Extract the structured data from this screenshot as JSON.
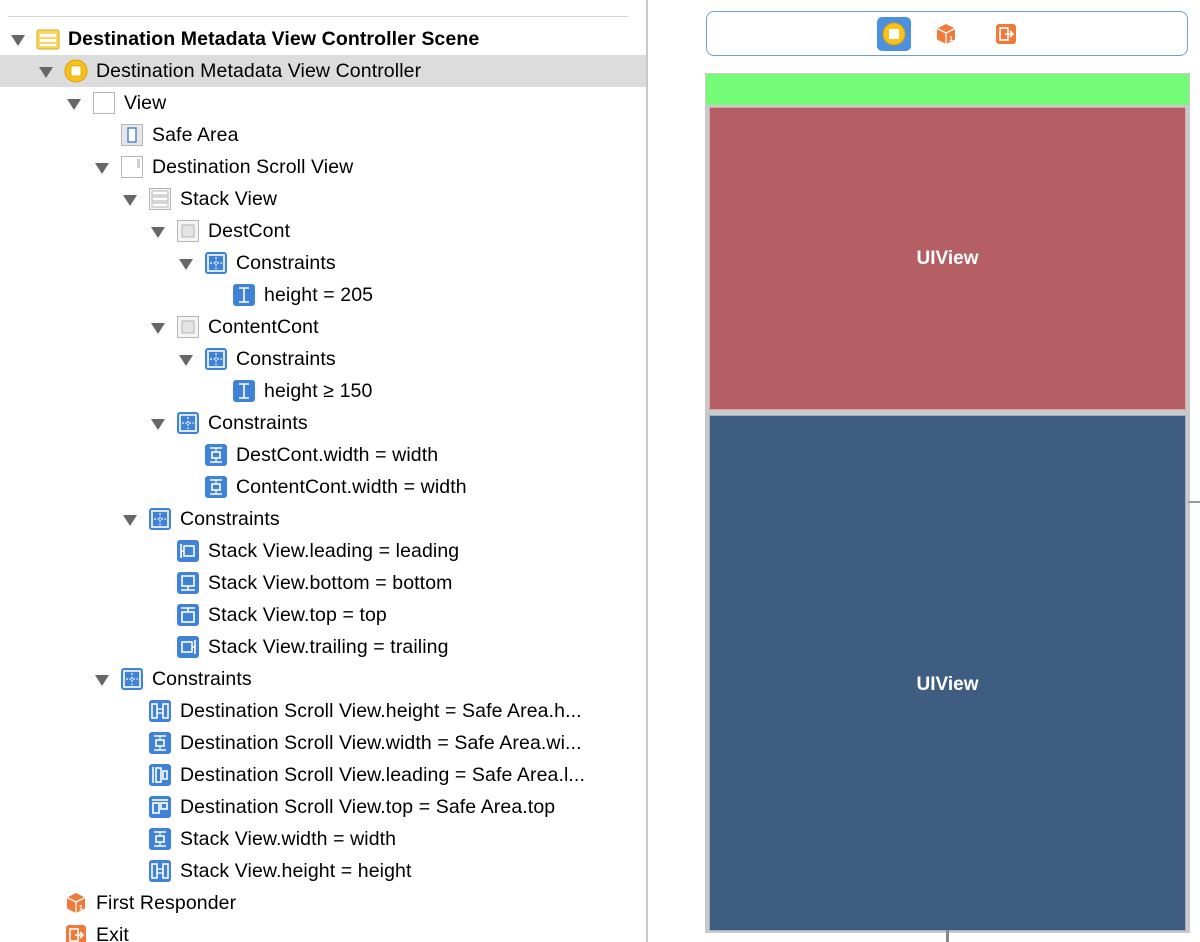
{
  "outline": {
    "rows": [
      {
        "label": "Destination Metadata View Controller Scene",
        "icon": "scene-icon",
        "expanded": true,
        "bold": true
      },
      {
        "label": "Destination Metadata View Controller",
        "icon": "view-controller-icon",
        "expanded": true,
        "selected": true
      },
      {
        "label": "View",
        "icon": "view-icon",
        "expanded": true
      },
      {
        "label": "Safe Area",
        "icon": "safe-area-icon"
      },
      {
        "label": "Destination Scroll View",
        "icon": "scroll-view-icon",
        "expanded": true
      },
      {
        "label": "Stack View",
        "icon": "stack-view-icon",
        "expanded": true
      },
      {
        "label": "DestCont",
        "icon": "container-view-icon",
        "expanded": true
      },
      {
        "label": "Constraints",
        "icon": "constraints-icon",
        "expanded": true
      },
      {
        "label": "height = 205",
        "icon": "height-constraint-icon"
      },
      {
        "label": "ContentCont",
        "icon": "container-view-icon",
        "expanded": true
      },
      {
        "label": "Constraints",
        "icon": "constraints-icon",
        "expanded": true
      },
      {
        "label": "height ≥ 150",
        "icon": "height-constraint-icon"
      },
      {
        "label": "Constraints",
        "icon": "constraints-icon",
        "expanded": true
      },
      {
        "label": "DestCont.width = width",
        "icon": "width-constraint-icon"
      },
      {
        "label": "ContentCont.width = width",
        "icon": "width-constraint-icon"
      },
      {
        "label": "Constraints",
        "icon": "constraints-icon",
        "expanded": true
      },
      {
        "label": "Stack View.leading = leading",
        "icon": "leading-constraint-icon"
      },
      {
        "label": "Stack View.bottom = bottom",
        "icon": "bottom-constraint-icon"
      },
      {
        "label": "Stack View.top = top",
        "icon": "top-constraint-icon"
      },
      {
        "label": "Stack View.trailing = trailing",
        "icon": "trailing-constraint-icon"
      },
      {
        "label": "Constraints",
        "icon": "constraints-icon",
        "expanded": true
      },
      {
        "label": "Destination Scroll View.height = Safe Area.h...",
        "icon": "equal-height-constraint-icon"
      },
      {
        "label": "Destination Scroll View.width = Safe Area.wi...",
        "icon": "width-constraint-icon"
      },
      {
        "label": "Destination Scroll View.leading = Safe Area.l...",
        "icon": "leading-edge-constraint-icon"
      },
      {
        "label": "Destination Scroll View.top = Safe Area.top",
        "icon": "top-edge-constraint-icon"
      },
      {
        "label": "Stack View.width = width",
        "icon": "width-constraint-icon"
      },
      {
        "label": "Stack View.height = height",
        "icon": "equal-height-constraint-icon"
      },
      {
        "label": "First Responder",
        "icon": "first-responder-icon"
      },
      {
        "label": "Exit",
        "icon": "exit-icon"
      }
    ]
  },
  "canvas": {
    "dock": {
      "items": [
        {
          "name": "view-controller-icon"
        },
        {
          "name": "first-responder-icon"
        },
        {
          "name": "exit-icon"
        }
      ]
    },
    "top_view_label": "UIView",
    "bottom_view_label": "UIView"
  },
  "colors": {
    "selected_row": "#dcdcdc",
    "safe_area_bar": "#74fb78",
    "top_view": "#b55f65",
    "bottom_view": "#3e5d80",
    "constraint_icon": "#3f82d6",
    "dock_border": "#6f9fd8"
  }
}
